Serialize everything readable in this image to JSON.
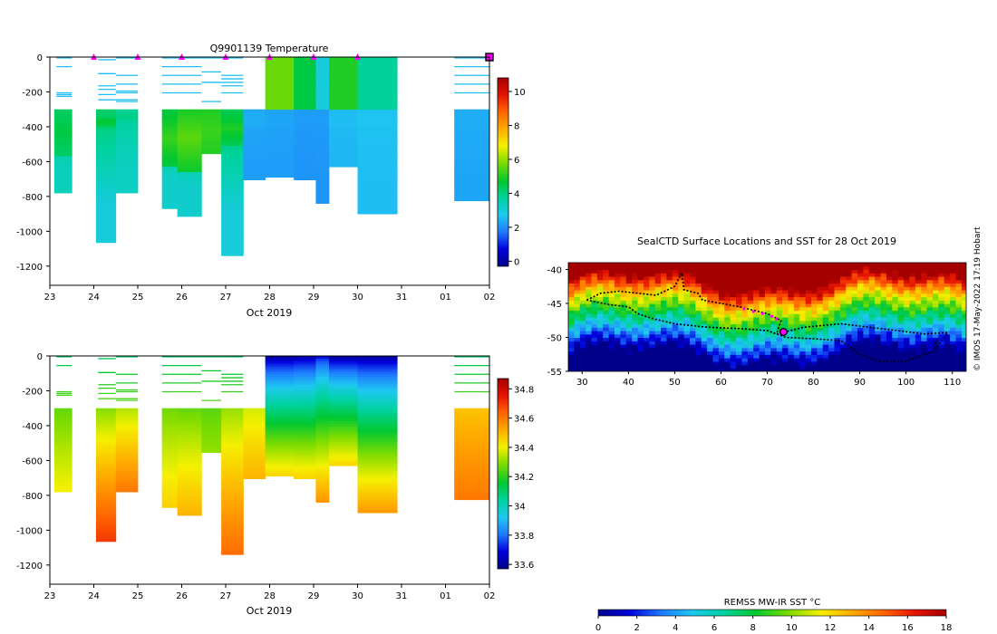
{
  "chart_data": [
    {
      "type": "heatmap",
      "name": "temperature-section",
      "title": "Q9901139  Temperature",
      "xlabel": "Oct 2019",
      "x_ticks": [
        "23",
        "24",
        "25",
        "26",
        "27",
        "28",
        "29",
        "30",
        "31",
        "01",
        "02"
      ],
      "x_domain_days": [
        23,
        33
      ],
      "ylim": [
        -1310,
        0
      ],
      "y_ticks": [
        0,
        -200,
        -400,
        -600,
        -800,
        -1000,
        -1200
      ],
      "colorbar": {
        "min": -0.3,
        "max": 10.8,
        "ticks": [
          0,
          2,
          4,
          6,
          8,
          10
        ],
        "stops": [
          "#00008b",
          "#0000dc",
          "#1e78ff",
          "#1ec8f0",
          "#00d2a0",
          "#00c832",
          "#7ddc00",
          "#f5f000",
          "#ffaa00",
          "#ff6400",
          "#e61400",
          "#a50000"
        ]
      },
      "surface_markers_day": [
        24,
        25,
        26,
        27,
        28,
        29,
        30
      ],
      "current_marker_day": 33,
      "profiles": [
        {
          "t0": 23.1,
          "t1": 23.5,
          "maxDepth": 770,
          "surf": 2.6,
          "deep": 3.4,
          "warm": 4.6,
          "warmTop": 280,
          "warmBot": 560
        },
        {
          "t0": 24.05,
          "t1": 24.5,
          "maxDepth": 1060,
          "surf": 2.8,
          "deep": 3.0,
          "warm": 4.8,
          "warmTop": 330,
          "warmBot": 400
        },
        {
          "t0": 24.5,
          "t1": 25.0,
          "maxDepth": 770,
          "surf": 3.0,
          "deep": 3.3,
          "warm": 4.0,
          "warmTop": 300,
          "warmBot": 360
        },
        {
          "t0": 25.55,
          "t1": 25.9,
          "maxDepth": 860,
          "surf": 3.4,
          "deep": 3.2,
          "warm": 5.2,
          "warmTop": 300,
          "warmBot": 620
        },
        {
          "t0": 25.9,
          "t1": 26.45,
          "maxDepth": 910,
          "surf": 3.5,
          "deep": 3.2,
          "warm": 5.5,
          "warmTop": 260,
          "warmBot": 650
        },
        {
          "t0": 26.45,
          "t1": 26.9,
          "maxDepth": 550,
          "surf": 3.6,
          "deep": 4.6,
          "warm": 5.2,
          "warmTop": 300,
          "warmBot": 540
        },
        {
          "t0": 26.9,
          "t1": 27.4,
          "maxDepth": 1130,
          "surf": 3.5,
          "deep": 3.0,
          "warm": 5.0,
          "warmTop": 300,
          "warmBot": 500
        },
        {
          "t0": 27.4,
          "t1": 27.9,
          "maxDepth": 700,
          "surf": 2.0,
          "deep": 2.2,
          "warm": 2.4,
          "warmTop": 300,
          "warmBot": 400
        },
        {
          "t0": 27.9,
          "t1": 28.55,
          "maxDepth": 690,
          "surf": 5.6,
          "deep": 2.2,
          "warm": 2.3,
          "warmTop": 300,
          "warmBot": 400
        },
        {
          "t0": 28.55,
          "t1": 29.05,
          "maxDepth": 700,
          "surf": 4.6,
          "deep": 2.1,
          "warm": 2.2,
          "warmTop": 300,
          "warmBot": 400
        },
        {
          "t0": 29.05,
          "t1": 29.35,
          "maxDepth": 830,
          "surf": 3.0,
          "deep": 2.1,
          "warm": 2.2,
          "warmTop": 300,
          "warmBot": 400
        },
        {
          "t0": 29.35,
          "t1": 30.0,
          "maxDepth": 630,
          "surf": 5.0,
          "deep": 2.5,
          "warm": 2.6,
          "warmTop": 300,
          "warmBot": 400
        },
        {
          "t0": 30.0,
          "t1": 30.9,
          "maxDepth": 900,
          "surf": 3.8,
          "deep": 2.6,
          "warm": 2.7,
          "warmTop": 300,
          "warmBot": 400
        },
        {
          "t0": 32.2,
          "t1": 33.0,
          "maxDepth": 820,
          "surf": 2.0,
          "deep": 2.3,
          "warm": 2.4,
          "warmTop": 300,
          "warmBot": 400
        }
      ],
      "partial_lines": [
        {
          "t0": 23.15,
          "t1": 23.5,
          "depths": [
            0,
            50,
            200,
            210,
            220
          ]
        },
        {
          "t0": 24.1,
          "t1": 24.5,
          "depths": [
            10,
            90,
            160,
            180,
            210,
            240
          ]
        },
        {
          "t0": 24.5,
          "t1": 25.0,
          "depths": [
            0,
            100,
            150,
            190,
            200,
            240,
            250
          ]
        },
        {
          "t0": 25.55,
          "t1": 26.45,
          "depths": [
            0,
            50,
            100,
            150,
            200
          ]
        },
        {
          "t0": 26.45,
          "t1": 26.9,
          "depths": [
            0,
            80,
            140,
            250
          ]
        },
        {
          "t0": 26.9,
          "t1": 27.4,
          "depths": [
            0,
            100,
            120,
            140,
            160,
            200
          ]
        },
        {
          "t0": 32.2,
          "t1": 33.0,
          "depths": [
            0,
            50,
            100,
            150,
            200
          ]
        }
      ]
    },
    {
      "type": "heatmap",
      "name": "salinity-section",
      "title": "",
      "xlabel": "Oct 2019",
      "x_ticks": [
        "23",
        "24",
        "25",
        "26",
        "27",
        "28",
        "29",
        "30",
        "31",
        "01",
        "02"
      ],
      "x_domain_days": [
        23,
        33
      ],
      "ylim": [
        -1310,
        0
      ],
      "y_ticks": [
        0,
        -200,
        -400,
        -600,
        -800,
        -1000,
        -1200
      ],
      "colorbar": {
        "min": 33.57,
        "max": 34.87,
        "ticks": [
          33.6,
          33.8,
          34,
          34.2,
          34.4,
          34.6,
          34.8
        ],
        "stops": [
          "#00008b",
          "#0000dc",
          "#1e78ff",
          "#1ec8f0",
          "#00d2a0",
          "#00c832",
          "#7ddc00",
          "#f5f000",
          "#ffaa00",
          "#ff6400",
          "#e61400",
          "#a50000"
        ]
      },
      "profiles": [
        {
          "t0": 23.1,
          "t1": 23.5,
          "maxDepth": 770,
          "surf": 34.1,
          "deep": 34.4
        },
        {
          "t0": 24.05,
          "t1": 24.5,
          "maxDepth": 1060,
          "surf": 34.0,
          "deep": 34.7
        },
        {
          "t0": 24.5,
          "t1": 25.0,
          "maxDepth": 770,
          "surf": 34.05,
          "deep": 34.6
        },
        {
          "t0": 25.55,
          "t1": 25.9,
          "maxDepth": 860,
          "surf": 34.1,
          "deep": 34.45
        },
        {
          "t0": 25.9,
          "t1": 26.45,
          "maxDepth": 910,
          "surf": 34.05,
          "deep": 34.5
        },
        {
          "t0": 26.45,
          "t1": 26.9,
          "maxDepth": 550,
          "surf": 34.15,
          "deep": 34.3
        },
        {
          "t0": 26.9,
          "t1": 27.4,
          "maxDepth": 1130,
          "surf": 34.1,
          "deep": 34.62
        },
        {
          "t0": 27.4,
          "t1": 27.9,
          "maxDepth": 700,
          "surf": 34.2,
          "deep": 34.5
        },
        {
          "t0": 27.9,
          "t1": 28.55,
          "maxDepth": 690,
          "surf": 33.6,
          "deep": 34.45
        },
        {
          "t0": 28.55,
          "t1": 29.05,
          "maxDepth": 700,
          "surf": 33.62,
          "deep": 34.45
        },
        {
          "t0": 29.05,
          "t1": 29.35,
          "maxDepth": 830,
          "surf": 33.7,
          "deep": 34.55
        },
        {
          "t0": 29.35,
          "t1": 30.0,
          "maxDepth": 630,
          "surf": 33.6,
          "deep": 34.45
        },
        {
          "t0": 30.0,
          "t1": 30.9,
          "maxDepth": 900,
          "surf": 33.6,
          "deep": 34.55
        },
        {
          "t0": 32.2,
          "t1": 33.0,
          "maxDepth": 820,
          "surf": 34.35,
          "deep": 34.6
        }
      ],
      "partial_lines": [
        {
          "t0": 23.15,
          "t1": 23.5,
          "depths": [
            0,
            50,
            200,
            210,
            220
          ]
        },
        {
          "t0": 24.1,
          "t1": 24.5,
          "depths": [
            10,
            90,
            160,
            180,
            210,
            240
          ]
        },
        {
          "t0": 24.5,
          "t1": 25.0,
          "depths": [
            0,
            100,
            150,
            190,
            200,
            240,
            250
          ]
        },
        {
          "t0": 25.55,
          "t1": 26.45,
          "depths": [
            0,
            50,
            100,
            150,
            200
          ]
        },
        {
          "t0": 26.45,
          "t1": 26.9,
          "depths": [
            0,
            80,
            140,
            250
          ]
        },
        {
          "t0": 26.9,
          "t1": 27.4,
          "depths": [
            0,
            100,
            120,
            140,
            160,
            200
          ]
        },
        {
          "t0": 32.2,
          "t1": 33.0,
          "depths": [
            0,
            50,
            100,
            150,
            200
          ]
        }
      ]
    },
    {
      "type": "heatmap",
      "name": "sst-map",
      "title": "SealCTD Surface Locations and SST for 28 Oct 2019",
      "xlim": [
        27,
        113
      ],
      "ylim": [
        -55,
        -39
      ],
      "x_ticks": [
        30,
        40,
        50,
        60,
        70,
        80,
        90,
        100,
        110
      ],
      "y_ticks": [
        -40,
        -45,
        -50,
        -55
      ],
      "colorbar": {
        "label": "REMSS MW-IR SST °C",
        "min": 0,
        "max": 18,
        "ticks": [
          0,
          2,
          4,
          6,
          8,
          10,
          12,
          14,
          16,
          18
        ],
        "stops": [
          "#00008b",
          "#0000dc",
          "#1e78ff",
          "#1ec8f0",
          "#00d2a0",
          "#00c832",
          "#7ddc00",
          "#f5f000",
          "#ffaa00",
          "#ff6400",
          "#e61400",
          "#a50000"
        ]
      },
      "track_lonlat": [
        [
          31,
          -44.5
        ],
        [
          34,
          -43.5
        ],
        [
          38,
          -43.2
        ],
        [
          42,
          -43.5
        ],
        [
          46,
          -43.8
        ],
        [
          50,
          -42.5
        ],
        [
          51.5,
          -40.5
        ],
        [
          52,
          -43
        ],
        [
          55,
          -43.5
        ],
        [
          56,
          -44.5
        ],
        [
          60,
          -45
        ],
        [
          64,
          -45.5
        ],
        [
          70,
          -46.5
        ],
        [
          73,
          -47.5
        ],
        [
          72,
          -49.5
        ],
        [
          78,
          -48.5
        ],
        [
          86,
          -48
        ],
        [
          92,
          -48.5
        ],
        [
          98,
          -49
        ],
        [
          104,
          -49.5
        ],
        [
          109,
          -49.3
        ],
        [
          106,
          -52
        ],
        [
          100,
          -53.5
        ],
        [
          94,
          -53.5
        ],
        [
          90,
          -52.5
        ],
        [
          86,
          -50.5
        ],
        [
          80,
          -50.2
        ],
        [
          74,
          -50
        ],
        [
          70,
          -49
        ],
        [
          64,
          -48.7
        ],
        [
          57,
          -48.5
        ],
        [
          50,
          -48
        ],
        [
          45,
          -47.2
        ],
        [
          42,
          -46.5
        ],
        [
          40,
          -45.5
        ],
        [
          36,
          -45.2
        ],
        [
          33,
          -44.8
        ],
        [
          31,
          -44.5
        ]
      ],
      "recent_positions": [
        [
          65,
          -45.8
        ],
        [
          67,
          -46.2
        ],
        [
          69,
          -46.5
        ],
        [
          71,
          -46.9
        ],
        [
          72,
          -47.3
        ]
      ],
      "current_position": [
        73.5,
        -49.2
      ],
      "credit": "© IMOS 17-May-2022 17:19 Hobart"
    }
  ]
}
